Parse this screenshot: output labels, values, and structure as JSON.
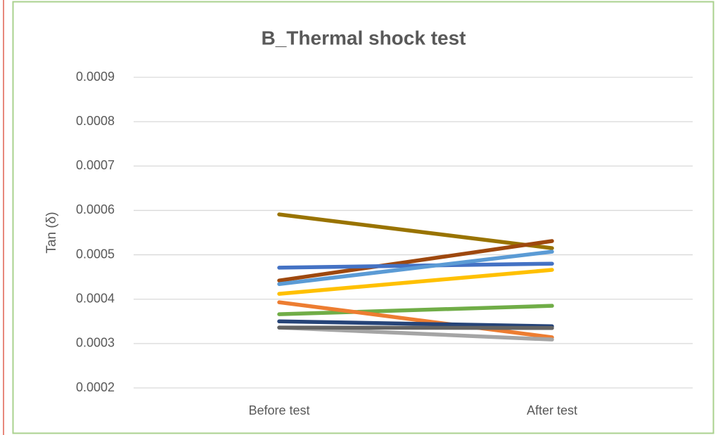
{
  "chart_data": {
    "type": "line",
    "title": "B_Thermal shock test",
    "y_label": "Tan (δ)",
    "categories": [
      "Before test",
      "After test"
    ],
    "series": [
      {
        "color": "#997300",
        "values": [
          0.000591,
          0.000515
        ]
      },
      {
        "color": "#9e480e",
        "values": [
          0.000442,
          0.000531
        ]
      },
      {
        "color": "#4472c4",
        "values": [
          0.000471,
          0.00048
        ]
      },
      {
        "color": "#5b9bd5",
        "values": [
          0.000434,
          0.000507
        ]
      },
      {
        "color": "#ffc000",
        "values": [
          0.000412,
          0.000466
        ]
      },
      {
        "color": "#70ad47",
        "values": [
          0.000366,
          0.000385
        ]
      },
      {
        "color": "#ed7d31",
        "values": [
          0.000393,
          0.000314
        ]
      },
      {
        "color": "#264478",
        "values": [
          0.00035,
          0.000339
        ]
      },
      {
        "color": "#a5a5a5",
        "values": [
          0.000336,
          0.000309
        ]
      },
      {
        "color": "#636363",
        "values": [
          0.000336,
          0.000335
        ]
      }
    ],
    "ylim": [
      0.0002,
      0.0009
    ],
    "yticks": [
      0.0002,
      0.0003,
      0.0004,
      0.0005,
      0.0006,
      0.0007,
      0.0008,
      0.0009
    ],
    "grid": true
  }
}
